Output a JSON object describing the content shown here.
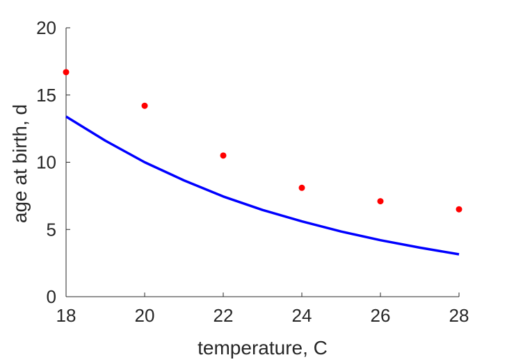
{
  "chart_data": {
    "type": "scatter",
    "xlabel": "temperature, C",
    "ylabel": "age at birth, d",
    "xlim": [
      18,
      28
    ],
    "ylim": [
      0,
      20
    ],
    "xticks": [
      18,
      20,
      22,
      24,
      26,
      28
    ],
    "yticks": [
      0,
      5,
      10,
      15,
      20
    ],
    "grid": false,
    "series": [
      {
        "kind": "scatter",
        "color": "#ff0000",
        "x": [
          18,
          20,
          22,
          24,
          26,
          28
        ],
        "y": [
          16.7,
          14.2,
          10.5,
          8.1,
          7.1,
          6.5
        ]
      },
      {
        "kind": "line",
        "color": "#0000ff",
        "x": [
          18,
          19,
          20,
          21,
          22,
          23,
          24,
          25,
          26,
          27,
          28
        ],
        "y": [
          13.4,
          11.6,
          10.0,
          8.65,
          7.45,
          6.45,
          5.6,
          4.85,
          4.2,
          3.65,
          3.15
        ]
      }
    ]
  }
}
